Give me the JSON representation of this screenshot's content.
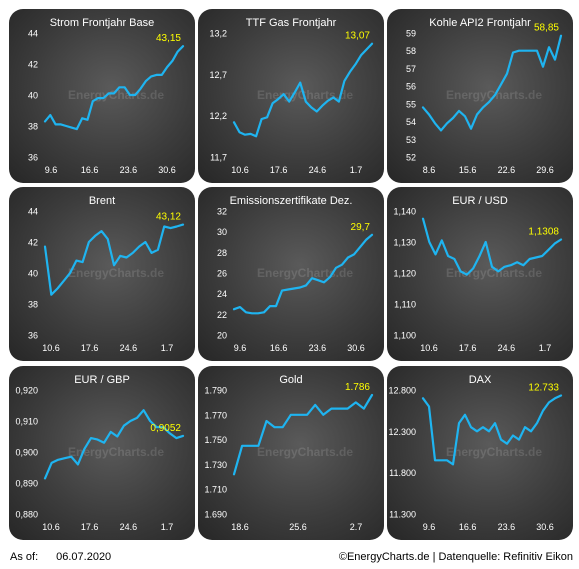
{
  "footer": {
    "asof_label": "As of:",
    "asof_date": "06.07.2020",
    "source": "©EnergyCharts.de | Datenquelle: Refinitiv Eikon"
  },
  "watermark": "EnergyCharts.de",
  "colors": {
    "line": "#1fb4f0",
    "value_label": "#ffff00",
    "text": "#ffffff",
    "panel_dark": "#262626",
    "panel_light": "#5a5a5a"
  },
  "chart_data": [
    {
      "type": "line",
      "title": "Strom Frontjahr Base",
      "ylim": [
        36,
        44
      ],
      "yticks": [
        "36",
        "38",
        "40",
        "42",
        "44"
      ],
      "xticks": [
        "9.6",
        "16.6",
        "23.6",
        "30.6"
      ],
      "last_label": "43,15",
      "values": [
        38.3,
        38.7,
        38.1,
        38.1,
        38.0,
        37.9,
        37.8,
        38.5,
        38.4,
        39.6,
        39.8,
        39.8,
        40.1,
        40.1,
        40.5,
        40.5,
        40.0,
        40.0,
        40.4,
        40.9,
        41.2,
        41.3,
        41.3,
        41.8,
        42.2,
        42.8,
        43.15
      ]
    },
    {
      "type": "line",
      "title": "TTF Gas Frontjahr",
      "ylim": [
        11.7,
        13.2
      ],
      "yticks": [
        "11,7",
        "12,2",
        "12,7",
        "13,2"
      ],
      "xticks": [
        "10.6",
        "17.6",
        "24.6",
        "1.7"
      ],
      "last_label": "13,07",
      "values": [
        12.12,
        12.0,
        11.97,
        11.98,
        11.95,
        12.16,
        12.18,
        12.35,
        12.4,
        12.46,
        12.37,
        12.48,
        12.6,
        12.37,
        12.3,
        12.25,
        12.32,
        12.38,
        12.42,
        12.37,
        12.62,
        12.73,
        12.82,
        12.93,
        13.0,
        13.07
      ]
    },
    {
      "type": "line",
      "title": "Kohle API2 Frontjahr",
      "ylim": [
        52,
        59
      ],
      "yticks": [
        "52",
        "53",
        "54",
        "55",
        "56",
        "57",
        "58",
        "59"
      ],
      "xticks": [
        "8.6",
        "15.6",
        "22.6",
        "29.6"
      ],
      "last_label": "58,85",
      "values": [
        54.8,
        54.4,
        53.9,
        53.5,
        53.9,
        54.2,
        54.6,
        54.3,
        53.6,
        54.4,
        54.8,
        55.1,
        55.5,
        56.1,
        56.7,
        57.9,
        58.0,
        58.0,
        58.0,
        58.0,
        57.1,
        58.2,
        57.5,
        58.85
      ]
    },
    {
      "type": "line",
      "title": "Brent",
      "ylim": [
        36,
        44
      ],
      "yticks": [
        "36",
        "38",
        "40",
        "42",
        "44"
      ],
      "xticks": [
        "10.6",
        "17.6",
        "24.6",
        "1.7"
      ],
      "last_label": "43,12",
      "values": [
        41.7,
        38.6,
        39.0,
        39.5,
        40.0,
        40.8,
        40.7,
        42.0,
        42.4,
        42.7,
        42.2,
        40.5,
        41.1,
        41.0,
        41.3,
        41.7,
        42.0,
        41.3,
        41.5,
        43.0,
        42.9,
        43.0,
        43.12
      ]
    },
    {
      "type": "line",
      "title": "Emissionszertifikate Dez.",
      "ylim": [
        20,
        32
      ],
      "yticks": [
        "20",
        "22",
        "24",
        "26",
        "28",
        "30",
        "32"
      ],
      "xticks": [
        "9.6",
        "16.6",
        "23.6",
        "30.6"
      ],
      "last_label": "29,7",
      "values": [
        22.5,
        22.7,
        22.2,
        22.1,
        22.1,
        22.2,
        22.8,
        22.8,
        24.3,
        24.4,
        24.5,
        24.6,
        24.8,
        25.5,
        25.3,
        25.1,
        25.6,
        26.5,
        26.8,
        27.5,
        27.8,
        28.5,
        29.2,
        29.7
      ]
    },
    {
      "type": "line",
      "title": "EUR / USD",
      "ylim": [
        1.1,
        1.14
      ],
      "yticks": [
        "1,100",
        "1,110",
        "1,120",
        "1,130",
        "1,140"
      ],
      "xticks": [
        "10.6",
        "17.6",
        "24.6",
        "1.7"
      ],
      "last_label": "1,1308",
      "values": [
        1.1375,
        1.13,
        1.126,
        1.1305,
        1.1255,
        1.1245,
        1.1205,
        1.1195,
        1.1215,
        1.1255,
        1.13,
        1.122,
        1.1205,
        1.122,
        1.1225,
        1.1235,
        1.1225,
        1.1245,
        1.125,
        1.1255,
        1.1275,
        1.1295,
        1.1308
      ]
    },
    {
      "type": "line",
      "title": "EUR / GBP",
      "ylim": [
        0.88,
        0.92
      ],
      "yticks": [
        "0,880",
        "0,890",
        "0,900",
        "0,910",
        "0,920"
      ],
      "xticks": [
        "10.6",
        "17.6",
        "24.6",
        "1.7"
      ],
      "last_label": "0,9052",
      "values": [
        0.8915,
        0.8965,
        0.8975,
        0.898,
        0.8985,
        0.896,
        0.901,
        0.9045,
        0.904,
        0.903,
        0.9065,
        0.905,
        0.9085,
        0.91,
        0.911,
        0.9135,
        0.91,
        0.908,
        0.908,
        0.906,
        0.9045,
        0.9052
      ]
    },
    {
      "type": "line",
      "title": "Gold",
      "ylim": [
        1690,
        1790
      ],
      "yticks": [
        "1.690",
        "1.710",
        "1.730",
        "1.750",
        "1.770",
        "1.790"
      ],
      "xticks": [
        "18.6",
        "25.6",
        "2.7"
      ],
      "last_label": "1.786",
      "values": [
        1722,
        1745,
        1745,
        1745,
        1765,
        1760,
        1760,
        1770,
        1770,
        1770,
        1778,
        1770,
        1775,
        1775,
        1775,
        1780,
        1775,
        1786
      ]
    },
    {
      "type": "line",
      "title": "DAX",
      "ylim": [
        11300,
        12800
      ],
      "yticks": [
        "11.300",
        "11.800",
        "12.300",
        "12.800"
      ],
      "xticks": [
        "9.6",
        "16.6",
        "23.6",
        "30.6"
      ],
      "last_label": "12.733",
      "values": [
        12700,
        12600,
        11950,
        11950,
        11950,
        11900,
        12400,
        12500,
        12350,
        12300,
        12350,
        12300,
        12400,
        12200,
        12150,
        12250,
        12200,
        12350,
        12300,
        12400,
        12550,
        12650,
        12700,
        12733
      ]
    }
  ]
}
